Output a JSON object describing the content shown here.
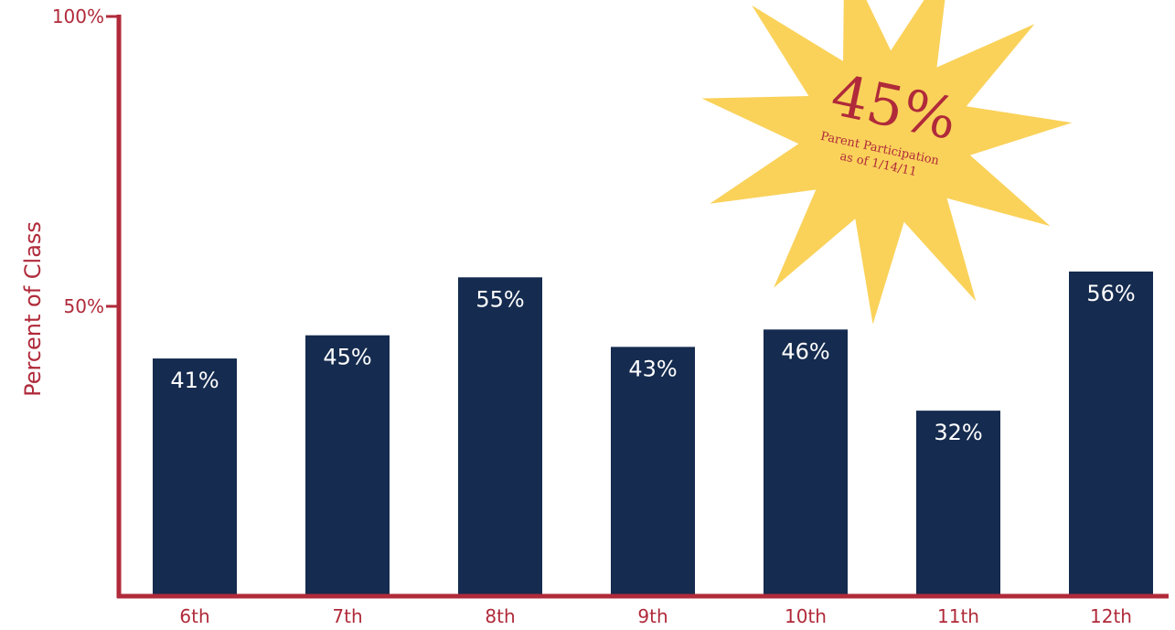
{
  "chart_data": {
    "type": "bar",
    "categories": [
      "6th",
      "7th",
      "8th",
      "9th",
      "10th",
      "11th",
      "12th"
    ],
    "values": [
      41,
      45,
      55,
      43,
      46,
      32,
      56
    ],
    "value_labels": [
      "41%",
      "45%",
      "55%",
      "43%",
      "46%",
      "32%",
      "56%"
    ],
    "title": "",
    "xlabel": "",
    "ylabel": "Percent of Class",
    "ylim": [
      0,
      100
    ],
    "y_ticks": [
      {
        "value": 50,
        "label": "50%"
      },
      {
        "value": 100,
        "label": "100%"
      }
    ],
    "grid": false,
    "legend": "none",
    "colors": {
      "bar": "#152b4f",
      "axis": "#b02a3a",
      "value_text": "#ffffff",
      "star": "#fad25a"
    },
    "annotation": {
      "shape": "starburst",
      "headline": "45%",
      "line1": "Parent Participation",
      "line2": "as of 1/14/11"
    }
  }
}
